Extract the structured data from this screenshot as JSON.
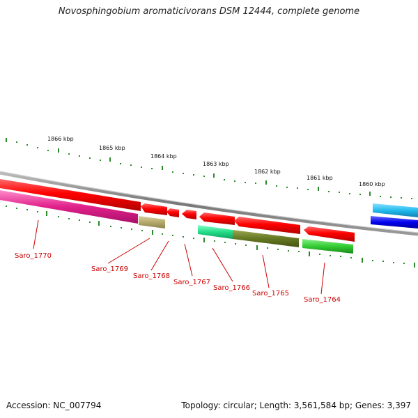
{
  "title": "Novosphingobium aromaticivorans DSM 12444, complete genome",
  "footer": {
    "accession": "Accession: NC_007794",
    "summary": "Topology: circular; Length: 3,561,584 bp; Genes: 3,397"
  },
  "kbp_labels": [
    "1866 kbp",
    "1865 kbp",
    "1864 kbp",
    "1863 kbp",
    "1862 kbp",
    "1861 kbp",
    "1860 kbp"
  ],
  "genes": [
    {
      "name": "Saro_1770",
      "color": "#e0208a",
      "strand": "reverse"
    },
    {
      "name": "Saro_1769",
      "color": "#b5aa6a",
      "strand": "reverse"
    },
    {
      "name": "Saro_1768",
      "color": "#ff0000",
      "strand": "forward"
    },
    {
      "name": "Saro_1767",
      "color": "#ff0000",
      "strand": "forward"
    },
    {
      "name": "Saro_1766",
      "color": "#22dd88",
      "strand": "reverse"
    },
    {
      "name": "Saro_1765",
      "color": "#667722",
      "strand": "reverse"
    },
    {
      "name": "Saro_1764",
      "color": "#33cc33",
      "strand": "reverse"
    }
  ],
  "colors": {
    "backbone": "#888888",
    "tick": "#2a8a2a",
    "forward_gene": "#ff0000",
    "label": "#cc0000",
    "cyan_gene": "#22bbee",
    "blue_gene": "#0000ee"
  }
}
